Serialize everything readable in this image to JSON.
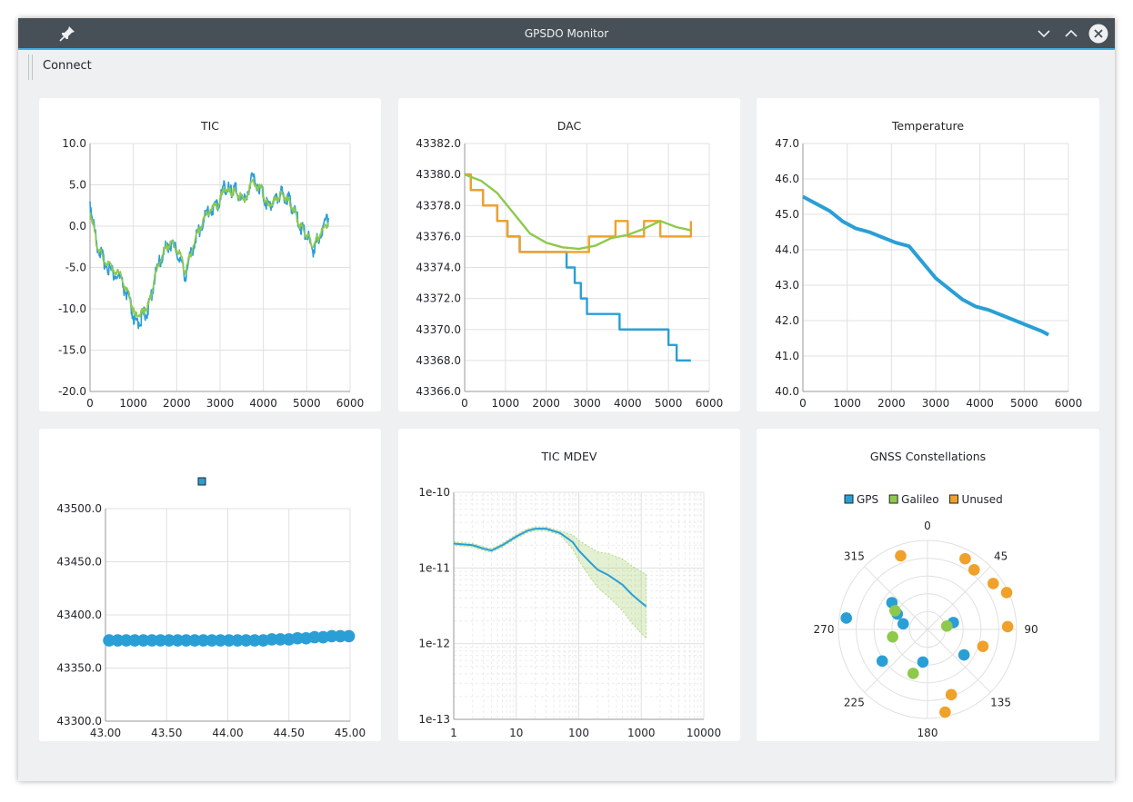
{
  "window": {
    "title": "GPSDO Monitor"
  },
  "toolbar": {
    "connect_label": "Connect"
  },
  "colors": {
    "blue": "#2a9fd6",
    "green": "#8ec94c",
    "orange": "#f0a12a",
    "grid": "#e0e0e0",
    "titlebar": "#475057"
  },
  "icons": {
    "pin": "pin-icon",
    "minimize": "chevron-down-icon",
    "maximize": "chevron-up-icon",
    "close": "close-icon"
  },
  "chart_data": [
    {
      "type": "line",
      "title": "TIC",
      "xlim": [
        0,
        6000
      ],
      "ylim": [
        -20,
        10
      ],
      "x_ticks": [
        "0",
        "1000",
        "2000",
        "3000",
        "4000",
        "5000",
        "6000"
      ],
      "y_ticks": [
        "-20.0",
        "-15.0",
        "-10.0",
        "-5.0",
        "0.0",
        "5.0",
        "10.0"
      ],
      "series": [
        {
          "color": "#2a9fd6",
          "x": [
            0,
            150,
            300,
            500,
            700,
            900,
            1050,
            1200,
            1350,
            1500,
            1700,
            1850,
            2050,
            2200,
            2400,
            2550,
            2750,
            2950,
            3100,
            3250,
            3350,
            3550,
            3750,
            3950,
            4100,
            4250,
            4400,
            4550,
            4700,
            4850,
            5000,
            5150,
            5300,
            5500
          ],
          "y": [
            3,
            -2,
            -4,
            -5.5,
            -6.5,
            -9,
            -12,
            -11,
            -10,
            -6,
            -3,
            -2,
            -3.5,
            -6,
            -2,
            0,
            2,
            2.5,
            5,
            4,
            4.5,
            3,
            6,
            4.5,
            2.5,
            3,
            4,
            3.5,
            2,
            0,
            -1,
            -3,
            -1,
            1
          ]
        },
        {
          "color": "#8ec94c",
          "x": [
            0,
            150,
            300,
            500,
            700,
            900,
            1050,
            1200,
            1350,
            1500,
            1700,
            1850,
            2050,
            2200,
            2400,
            2550,
            2750,
            2950,
            3100,
            3250,
            3350,
            3550,
            3750,
            3950,
            4100,
            4250,
            4400,
            4550,
            4700,
            4850,
            5000,
            5150,
            5300,
            5500
          ],
          "y": [
            2,
            -2,
            -4,
            -5,
            -6,
            -8.5,
            -11,
            -10.5,
            -9.5,
            -6,
            -3,
            -2,
            -3,
            -5.5,
            -2,
            0,
            2,
            2.5,
            4.5,
            4,
            4.2,
            3,
            5.5,
            4.5,
            2.5,
            3,
            3.8,
            3.3,
            2,
            0,
            -1,
            -2.5,
            -1,
            0.5
          ]
        }
      ]
    },
    {
      "type": "line",
      "title": "DAC",
      "xlim": [
        0,
        6000
      ],
      "ylim": [
        43366,
        43382
      ],
      "x_ticks": [
        "0",
        "1000",
        "2000",
        "3000",
        "4000",
        "5000",
        "6000"
      ],
      "y_ticks": [
        "43366.0",
        "43368.0",
        "43370.0",
        "43372.0",
        "43374.0",
        "43376.0",
        "43378.0",
        "43380.0",
        "43382.0"
      ],
      "series": [
        {
          "color": "#2a9fd6",
          "step": true,
          "x": [
            0,
            150,
            450,
            800,
            1050,
            1350,
            2000,
            2500,
            2700,
            2850,
            3000,
            3600,
            3800,
            4400,
            4500,
            4600,
            5000,
            5200,
            5350,
            5550
          ],
          "y": [
            43380,
            43379,
            43378,
            43377,
            43376,
            43375,
            43375,
            43374,
            43373,
            43372,
            43371,
            43371,
            43370,
            43370,
            43370,
            43370,
            43369,
            43368,
            43368,
            43368
          ]
        },
        {
          "color": "#f0a12a",
          "step": true,
          "x": [
            0,
            150,
            450,
            800,
            1050,
            1350,
            2000,
            2500,
            3050,
            3600,
            3700,
            4000,
            4200,
            4400,
            4600,
            4800,
            5050,
            5400,
            5550
          ],
          "y": [
            43380,
            43379,
            43378,
            43377,
            43376,
            43375,
            43375,
            43375,
            43376,
            43376,
            43377,
            43376,
            43376,
            43377,
            43377,
            43376,
            43376,
            43376,
            43377
          ]
        },
        {
          "color": "#8ec94c",
          "x": [
            0,
            400,
            800,
            1200,
            1600,
            2000,
            2400,
            2800,
            3200,
            3600,
            4000,
            4400,
            4800,
            5200,
            5550
          ],
          "y": [
            43380,
            43379.6,
            43378.8,
            43377.5,
            43376.2,
            43375.6,
            43375.3,
            43375.2,
            43375.4,
            43375.9,
            43376.1,
            43376.5,
            43377,
            43376.6,
            43376.4
          ]
        }
      ]
    },
    {
      "type": "line",
      "title": "Temperature",
      "xlim": [
        0,
        6000
      ],
      "ylim": [
        40,
        47
      ],
      "x_ticks": [
        "0",
        "1000",
        "2000",
        "3000",
        "4000",
        "5000",
        "6000"
      ],
      "y_ticks": [
        "40.0",
        "41.0",
        "42.0",
        "43.0",
        "44.0",
        "45.0",
        "46.0",
        "47.0"
      ],
      "series": [
        {
          "color": "#2a9fd6",
          "x": [
            0,
            300,
            600,
            900,
            1200,
            1500,
            1800,
            2100,
            2400,
            2600,
            2800,
            3000,
            3300,
            3600,
            3900,
            4200,
            4500,
            4800,
            5100,
            5400,
            5550
          ],
          "y": [
            45.5,
            45.3,
            45.1,
            44.8,
            44.6,
            44.5,
            44.35,
            44.2,
            44.1,
            43.8,
            43.5,
            43.2,
            42.9,
            42.6,
            42.4,
            42.3,
            42.15,
            42,
            41.85,
            41.7,
            41.6
          ]
        }
      ]
    },
    {
      "type": "scatter",
      "title": "",
      "xlim": [
        43.0,
        45.0
      ],
      "ylim": [
        43300,
        43500
      ],
      "x_ticks": [
        "43.00",
        "43.50",
        "44.00",
        "44.50",
        "45.00"
      ],
      "y_ticks": [
        "43300.0",
        "43350.0",
        "43400.0",
        "43450.0",
        "43500.0"
      ],
      "series": [
        {
          "color": "#2a9fd6",
          "x": [
            43.03,
            43.1,
            43.17,
            43.24,
            43.31,
            43.38,
            43.45,
            43.52,
            43.59,
            43.66,
            43.73,
            43.8,
            43.87,
            43.94,
            44.01,
            44.08,
            44.15,
            44.22,
            44.29,
            44.36,
            44.43,
            44.5,
            44.57,
            44.64,
            44.71,
            44.78,
            44.85,
            44.92,
            44.99
          ],
          "y": [
            43376,
            43376,
            43376,
            43376,
            43376,
            43376,
            43376,
            43376,
            43376,
            43376,
            43376,
            43376,
            43376,
            43376,
            43376,
            43376,
            43376,
            43376,
            43376,
            43377,
            43377,
            43377,
            43378,
            43378,
            43379,
            43379,
            43380,
            43380,
            43380
          ]
        }
      ]
    },
    {
      "type": "line",
      "title": "TIC MDEV",
      "x_scale": "log",
      "y_scale": "log",
      "xlim": [
        1,
        10000
      ],
      "ylim": [
        1e-13,
        1e-10
      ],
      "x_ticks": [
        "1",
        "10",
        "100",
        "1000",
        "10000"
      ],
      "y_ticks": [
        "1e-13",
        "1e-12",
        "1e-11",
        "1e-10"
      ],
      "series": [
        {
          "color": "#2a9fd6",
          "x": [
            1,
            2,
            3,
            4,
            6,
            10,
            15,
            20,
            30,
            50,
            80,
            100,
            150,
            200,
            300,
            500,
            700,
            1000,
            1200
          ],
          "y": [
            2.1e-11,
            2e-11,
            1.8e-11,
            1.7e-11,
            2e-11,
            2.6e-11,
            3.1e-11,
            3.3e-11,
            3.3e-11,
            2.9e-11,
            2.2e-11,
            1.7e-11,
            1.2e-11,
            9.5e-12,
            8e-12,
            6e-12,
            4.5e-12,
            3.5e-12,
            3.1e-12
          ]
        }
      ]
    },
    {
      "type": "scatter",
      "title": "GNSS Constellations",
      "polar": true,
      "legend_position": "top",
      "angle_labels": [
        "0",
        "45",
        "90",
        "135",
        "180",
        "225",
        "270",
        "315"
      ],
      "series": [
        {
          "name": "GPS",
          "color": "#2a9fd6",
          "angle": [
            278,
            307,
            297,
            283,
            75,
            125,
            188,
            235
          ],
          "radius": [
            0.92,
            0.5,
            0.38,
            0.28,
            0.3,
            0.5,
            0.37,
            0.62
          ]
        },
        {
          "name": "Galileo",
          "color": "#8ec94c",
          "angle": [
            300,
            258,
            80,
            198
          ],
          "radius": [
            0.42,
            0.4,
            0.22,
            0.52
          ]
        },
        {
          "name": "Unused",
          "color": "#f0a12a",
          "angle": [
            340,
            28,
            38,
            55,
            65,
            88,
            107,
            160,
            168
          ],
          "radius": [
            0.88,
            0.9,
            0.85,
            0.9,
            0.98,
            0.9,
            0.65,
            0.78,
            0.95
          ]
        }
      ]
    }
  ]
}
